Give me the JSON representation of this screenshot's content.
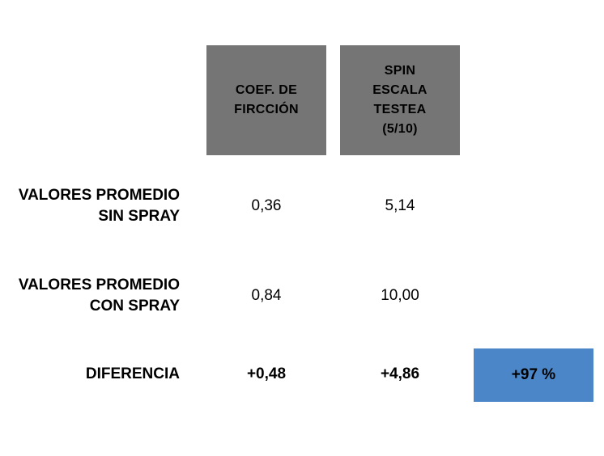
{
  "headers": {
    "col1": "COEF. DE\nFIRCCIÓN",
    "col2": "SPIN\nESCALA\nTESTEA\n(5/10)"
  },
  "rows": [
    {
      "label": "VALORES PROMEDIO\nSIN SPRAY",
      "coef": "0,36",
      "spin": "5,14"
    },
    {
      "label": "VALORES PROMEDIO\nCON SPRAY",
      "coef": "0,84",
      "spin": "10,00"
    },
    {
      "label": "DIFERENCIA",
      "coef": "+0,48",
      "spin": "+4,86",
      "percent": "+97 %"
    }
  ],
  "colors": {
    "header_bg": "#757575",
    "highlight_bg": "#4a86c8"
  }
}
